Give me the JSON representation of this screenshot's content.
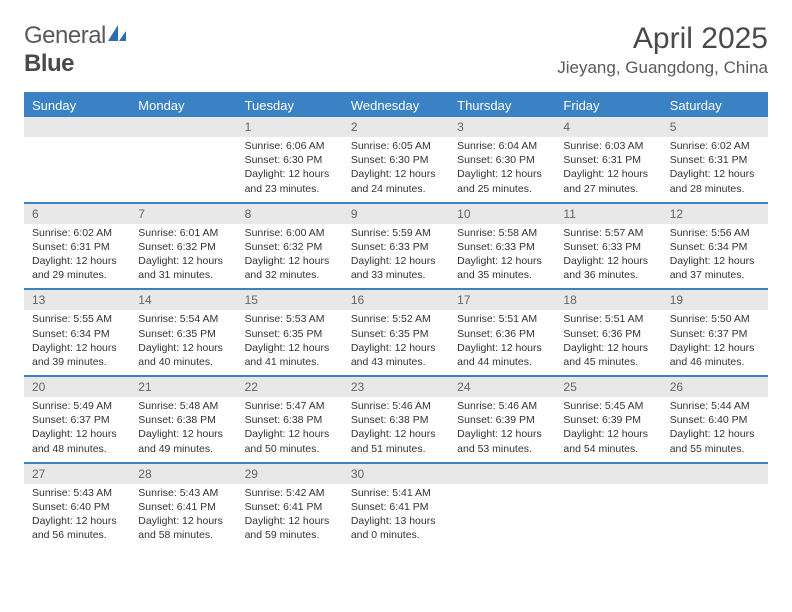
{
  "brand": {
    "part1": "General",
    "part2": "Blue"
  },
  "title": "April 2025",
  "location": "Jieyang, Guangdong, China",
  "colors": {
    "header_bg": "#3b82c4",
    "header_text": "#ffffff",
    "daynum_bg": "#e8e8e8",
    "daynum_text": "#666666",
    "body_text": "#333333",
    "page_bg": "#ffffff",
    "logo_accent": "#2a6db0"
  },
  "day_headers": [
    "Sunday",
    "Monday",
    "Tuesday",
    "Wednesday",
    "Thursday",
    "Friday",
    "Saturday"
  ],
  "leading_blanks": 2,
  "days": [
    {
      "n": 1,
      "sunrise": "6:06 AM",
      "sunset": "6:30 PM",
      "daylight": "12 hours and 23 minutes."
    },
    {
      "n": 2,
      "sunrise": "6:05 AM",
      "sunset": "6:30 PM",
      "daylight": "12 hours and 24 minutes."
    },
    {
      "n": 3,
      "sunrise": "6:04 AM",
      "sunset": "6:30 PM",
      "daylight": "12 hours and 25 minutes."
    },
    {
      "n": 4,
      "sunrise": "6:03 AM",
      "sunset": "6:31 PM",
      "daylight": "12 hours and 27 minutes."
    },
    {
      "n": 5,
      "sunrise": "6:02 AM",
      "sunset": "6:31 PM",
      "daylight": "12 hours and 28 minutes."
    },
    {
      "n": 6,
      "sunrise": "6:02 AM",
      "sunset": "6:31 PM",
      "daylight": "12 hours and 29 minutes."
    },
    {
      "n": 7,
      "sunrise": "6:01 AM",
      "sunset": "6:32 PM",
      "daylight": "12 hours and 31 minutes."
    },
    {
      "n": 8,
      "sunrise": "6:00 AM",
      "sunset": "6:32 PM",
      "daylight": "12 hours and 32 minutes."
    },
    {
      "n": 9,
      "sunrise": "5:59 AM",
      "sunset": "6:33 PM",
      "daylight": "12 hours and 33 minutes."
    },
    {
      "n": 10,
      "sunrise": "5:58 AM",
      "sunset": "6:33 PM",
      "daylight": "12 hours and 35 minutes."
    },
    {
      "n": 11,
      "sunrise": "5:57 AM",
      "sunset": "6:33 PM",
      "daylight": "12 hours and 36 minutes."
    },
    {
      "n": 12,
      "sunrise": "5:56 AM",
      "sunset": "6:34 PM",
      "daylight": "12 hours and 37 minutes."
    },
    {
      "n": 13,
      "sunrise": "5:55 AM",
      "sunset": "6:34 PM",
      "daylight": "12 hours and 39 minutes."
    },
    {
      "n": 14,
      "sunrise": "5:54 AM",
      "sunset": "6:35 PM",
      "daylight": "12 hours and 40 minutes."
    },
    {
      "n": 15,
      "sunrise": "5:53 AM",
      "sunset": "6:35 PM",
      "daylight": "12 hours and 41 minutes."
    },
    {
      "n": 16,
      "sunrise": "5:52 AM",
      "sunset": "6:35 PM",
      "daylight": "12 hours and 43 minutes."
    },
    {
      "n": 17,
      "sunrise": "5:51 AM",
      "sunset": "6:36 PM",
      "daylight": "12 hours and 44 minutes."
    },
    {
      "n": 18,
      "sunrise": "5:51 AM",
      "sunset": "6:36 PM",
      "daylight": "12 hours and 45 minutes."
    },
    {
      "n": 19,
      "sunrise": "5:50 AM",
      "sunset": "6:37 PM",
      "daylight": "12 hours and 46 minutes."
    },
    {
      "n": 20,
      "sunrise": "5:49 AM",
      "sunset": "6:37 PM",
      "daylight": "12 hours and 48 minutes."
    },
    {
      "n": 21,
      "sunrise": "5:48 AM",
      "sunset": "6:38 PM",
      "daylight": "12 hours and 49 minutes."
    },
    {
      "n": 22,
      "sunrise": "5:47 AM",
      "sunset": "6:38 PM",
      "daylight": "12 hours and 50 minutes."
    },
    {
      "n": 23,
      "sunrise": "5:46 AM",
      "sunset": "6:38 PM",
      "daylight": "12 hours and 51 minutes."
    },
    {
      "n": 24,
      "sunrise": "5:46 AM",
      "sunset": "6:39 PM",
      "daylight": "12 hours and 53 minutes."
    },
    {
      "n": 25,
      "sunrise": "5:45 AM",
      "sunset": "6:39 PM",
      "daylight": "12 hours and 54 minutes."
    },
    {
      "n": 26,
      "sunrise": "5:44 AM",
      "sunset": "6:40 PM",
      "daylight": "12 hours and 55 minutes."
    },
    {
      "n": 27,
      "sunrise": "5:43 AM",
      "sunset": "6:40 PM",
      "daylight": "12 hours and 56 minutes."
    },
    {
      "n": 28,
      "sunrise": "5:43 AM",
      "sunset": "6:41 PM",
      "daylight": "12 hours and 58 minutes."
    },
    {
      "n": 29,
      "sunrise": "5:42 AM",
      "sunset": "6:41 PM",
      "daylight": "12 hours and 59 minutes."
    },
    {
      "n": 30,
      "sunrise": "5:41 AM",
      "sunset": "6:41 PM",
      "daylight": "13 hours and 0 minutes."
    }
  ],
  "labels": {
    "sunrise": "Sunrise:",
    "sunset": "Sunset:",
    "daylight": "Daylight:"
  }
}
